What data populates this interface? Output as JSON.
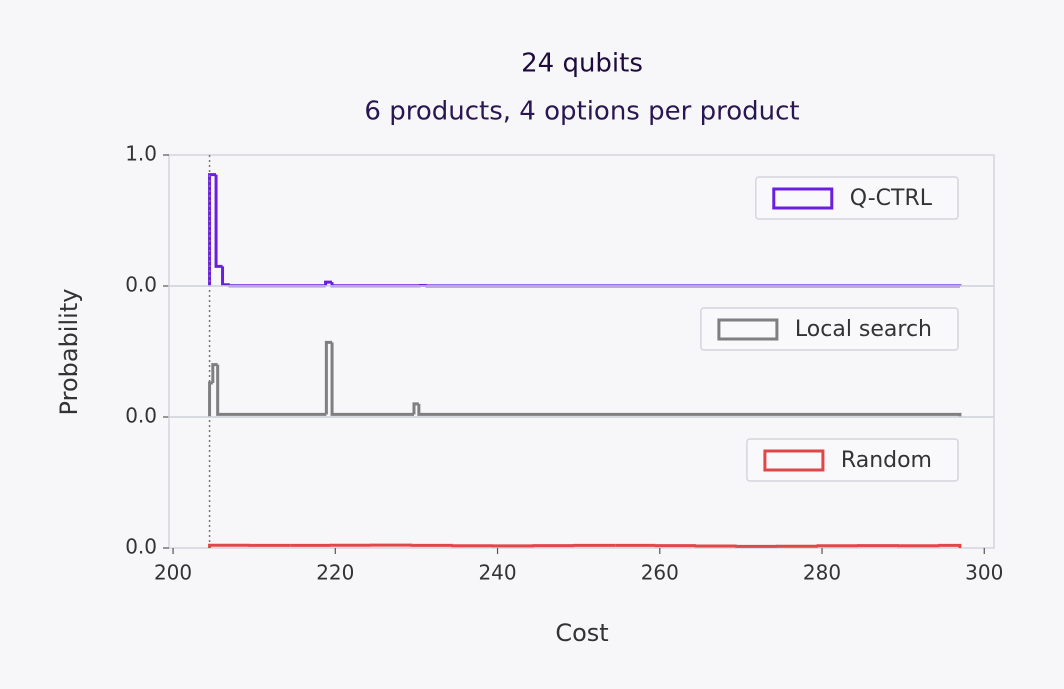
{
  "chart_data": [
    {
      "type": "histogram",
      "title": "24 qubits",
      "subtitle": "6 products, 4 options per product",
      "ylabel": "Probability",
      "vline": 204.5,
      "series": [
        {
          "name": "Q-CTRL",
          "color": "#6a1fe0",
          "bins": [
            204.5,
            205.3,
            206.1,
            207,
            218.8,
            219.6,
            230.5,
            231.3,
            297
          ],
          "values": [
            0.85,
            0.15,
            0.01,
            0.002,
            0.03,
            0.002,
            0.004,
            0.001
          ]
        }
      ],
      "xlim": [
        199.5,
        301.2
      ],
      "ylim": [
        0,
        1
      ],
      "yticks": [
        {
          "value": 0,
          "label": "0.0"
        },
        {
          "value": 1,
          "label": "1.0"
        }
      ]
    },
    {
      "type": "histogram",
      "series": [
        {
          "name": "Local search",
          "color": "#7f7f7f",
          "bins": [
            204.5,
            204.9,
            205.5,
            218.9,
            219.6,
            229.7,
            230.3,
            297
          ],
          "values": [
            0.26,
            0.4,
            0.02,
            0.57,
            0.02,
            0.1,
            0.02
          ]
        }
      ],
      "xlim": [
        199.5,
        301.2
      ],
      "ylim": [
        0,
        1
      ],
      "yticks": [
        {
          "value": 0,
          "label": "0.0"
        }
      ]
    },
    {
      "type": "histogram",
      "xlabel": "Cost",
      "series": [
        {
          "name": "Random",
          "color": "#e04848",
          "bins": [
            204.5,
            209.5,
            214.5,
            219.5,
            224.5,
            229.5,
            234.5,
            239.5,
            244.5,
            249.5,
            254.5,
            259.5,
            264.5,
            269.5,
            274.5,
            279.5,
            284.5,
            289.5,
            294.5,
            297
          ],
          "values": [
            0.021,
            0.02,
            0.02,
            0.021,
            0.022,
            0.02,
            0.017,
            0.016,
            0.018,
            0.02,
            0.02,
            0.018,
            0.015,
            0.012,
            0.013,
            0.017,
            0.018,
            0.017,
            0.02
          ]
        }
      ],
      "xlim": [
        199.5,
        301.2
      ],
      "ylim": [
        0,
        1
      ],
      "yticks": [
        {
          "value": 0,
          "label": "0.0"
        }
      ],
      "xticks": [
        200,
        220,
        240,
        260,
        280,
        300
      ]
    }
  ]
}
